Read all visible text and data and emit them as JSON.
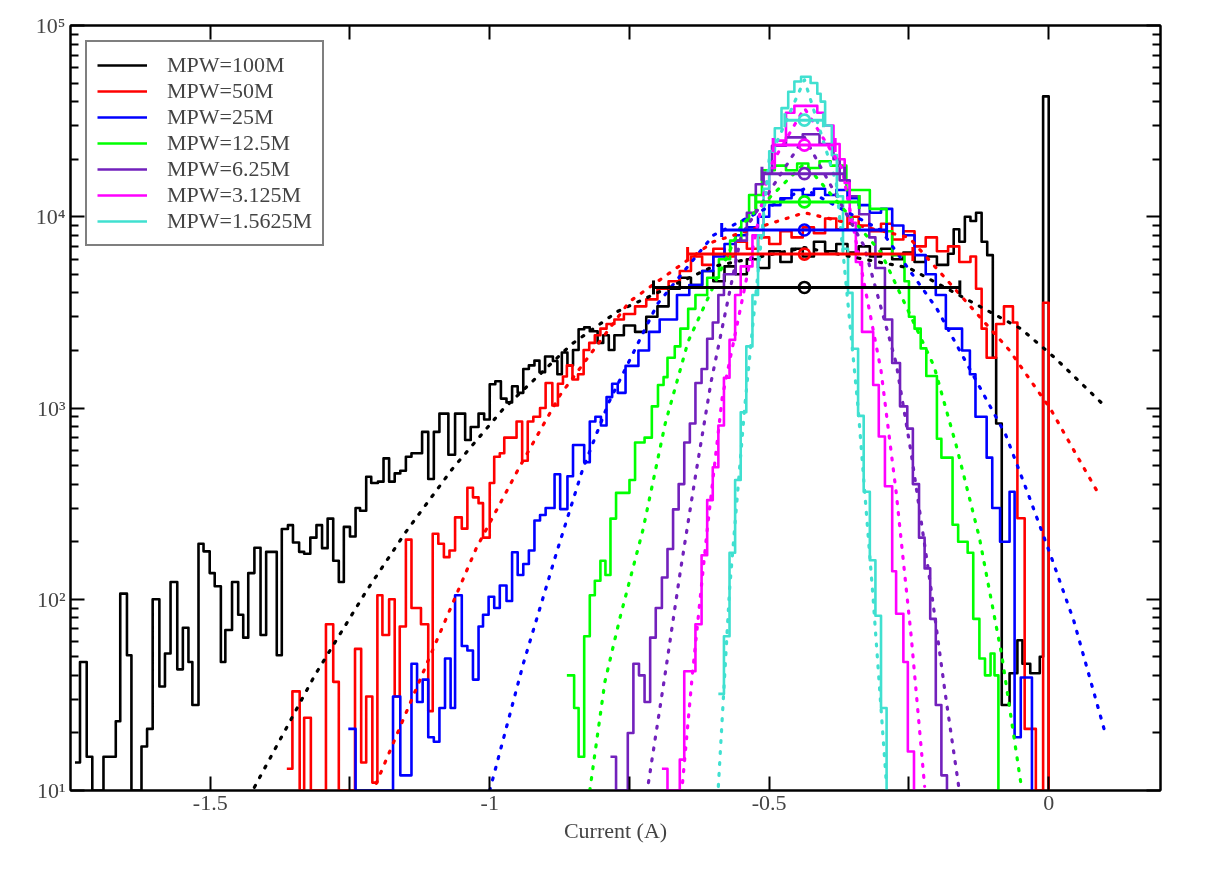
{
  "chart_data": {
    "type": "step",
    "xlabel": "Current (A)",
    "xlim": [
      -1.75,
      0.2
    ],
    "ylim": [
      10,
      100000
    ],
    "log": true,
    "grid": false,
    "legend": "top left",
    "xticks": [
      -1.5,
      {
        "value": -1.25,
        "label": null
      },
      -1,
      {
        "value": -0.75,
        "label": null
      },
      -0.5,
      {
        "value": -0.25,
        "label": null
      },
      0
    ],
    "yticks": [
      {
        "value": 10,
        "label": "10¹"
      },
      {
        "value": 100,
        "label": "10²"
      },
      {
        "value": 1000,
        "label": "10³"
      },
      {
        "value": 10000,
        "label": "10⁴"
      },
      {
        "value": 100000,
        "label": "10⁵"
      }
    ],
    "series": [
      {
        "name": "MPW=100M",
        "color": "#000000",
        "x": [
          -1.742,
          -1.733,
          -1.721,
          -1.711,
          -1.691,
          -1.669,
          -1.661,
          -1.649,
          -1.641,
          -1.623,
          -1.613,
          -1.603,
          -1.591,
          -1.581,
          -1.571,
          -1.559,
          -1.549,
          -1.539,
          -1.532,
          -1.521,
          -1.512,
          -1.501,
          -1.492,
          -1.481,
          -1.473,
          -1.461,
          -1.45,
          -1.441,
          -1.432,
          -1.421,
          -1.41,
          -1.4,
          -1.381,
          -1.372,
          -1.361,
          -1.352,
          -1.341,
          -1.332,
          -1.321,
          -1.31,
          -1.3,
          -1.29,
          -1.28,
          -1.27,
          -1.261,
          -1.25,
          -1.24,
          -1.232,
          -1.221,
          -1.212,
          -1.2,
          -1.19,
          -1.18,
          -1.17,
          -1.16,
          -1.15,
          -1.14,
          -1.121,
          -1.11,
          -1.1,
          -1.09,
          -1.074,
          -1.062,
          -1.044,
          -1.034,
          -1.02,
          -1.01,
          -1.0,
          -0.99,
          -0.98,
          -0.97,
          -0.96,
          -0.95,
          -0.94,
          -0.93,
          -0.92,
          -0.911,
          -0.901,
          -0.887,
          -0.879,
          -0.871,
          -0.861,
          -0.851,
          -0.841,
          -0.831,
          -0.821,
          -0.807,
          -0.797,
          -0.787,
          -0.777,
          -0.76,
          -0.74,
          -0.72,
          -0.7,
          -0.68,
          -0.66,
          -0.64,
          -0.62,
          -0.6,
          -0.58,
          -0.56,
          -0.54,
          -0.52,
          -0.5,
          -0.48,
          -0.46,
          -0.44,
          -0.42,
          -0.4,
          -0.38,
          -0.36,
          -0.34,
          -0.32,
          -0.3,
          -0.28,
          -0.26,
          -0.24,
          -0.22,
          -0.2,
          -0.18,
          -0.17,
          -0.16,
          -0.15,
          -0.14,
          -0.13,
          -0.12,
          -0.11,
          -0.1,
          -0.094,
          -0.084,
          -0.07,
          -0.056,
          -0.047,
          -0.033,
          -0.016,
          -0.01,
          0
        ],
        "values": [
          14,
          47,
          15,
          10,
          15,
          23,
          107,
          51,
          10,
          17,
          21,
          100,
          35,
          52,
          123,
          43,
          71,
          47,
          28,
          195,
          178,
          137,
          117,
          47,
          69,
          123,
          83,
          63,
          137,
          186,
          65,
          177,
          51,
          233,
          244,
          198,
          177,
          173,
          210,
          244,
          185,
          264,
          159,
          123,
          239,
          213,
          300,
          290,
          437,
          405,
          412,
          545,
          412,
          455,
          470,
          556,
          580,
          750,
          425,
          750,
          935,
          570,
          935,
          680,
          795,
          935,
          870,
          1330,
          1380,
          1120,
          1070,
          1300,
          1200,
          1600,
          1670,
          1770,
          1540,
          1860,
          1760,
          1500,
          1950,
          1670,
          2010,
          2580,
          2640,
          2520,
          2190,
          2400,
          2010,
          2400,
          2700,
          2500,
          3000,
          3400,
          4200,
          4800,
          4400,
          5200,
          4600,
          5500,
          5000,
          6000,
          5400,
          6600,
          5800,
          6800,
          6200,
          7400,
          6600,
          7200,
          6500,
          7000,
          6200,
          6800,
          6000,
          6500,
          5800,
          6200,
          5600,
          6400,
          8600,
          7400,
          10000,
          9500,
          10500,
          7400,
          6300,
          1830,
          830,
          28,
          41,
          61,
          46,
          41,
          50,
          42600,
          10
        ]
      },
      {
        "name": "MPW=50M",
        "color": "#ff0000",
        "x": [
          -1.363,
          -1.353,
          -1.34,
          -1.332,
          -1.32,
          -1.293,
          -1.28,
          -1.27,
          -1.241,
          -1.23,
          -1.221,
          -1.21,
          -1.201,
          -1.192,
          -1.18,
          -1.17,
          -1.161,
          -1.15,
          -1.14,
          -1.123,
          -1.11,
          -1.102,
          -1.092,
          -1.082,
          -1.072,
          -1.062,
          -1.05,
          -1.04,
          -1.03,
          -1.02,
          -1.012,
          -1.0,
          -0.992,
          -0.982,
          -0.974,
          -0.952,
          -0.942,
          -0.932,
          -0.922,
          -0.91,
          -0.9,
          -0.888,
          -0.878,
          -0.869,
          -0.862,
          -0.852,
          -0.842,
          -0.832,
          -0.822,
          -0.812,
          -0.802,
          -0.791,
          -0.777,
          -0.76,
          -0.74,
          -0.72,
          -0.7,
          -0.68,
          -0.66,
          -0.64,
          -0.62,
          -0.6,
          -0.58,
          -0.56,
          -0.54,
          -0.52,
          -0.5,
          -0.48,
          -0.46,
          -0.44,
          -0.42,
          -0.4,
          -0.38,
          -0.36,
          -0.34,
          -0.32,
          -0.3,
          -0.28,
          -0.26,
          -0.24,
          -0.22,
          -0.2,
          -0.18,
          -0.16,
          -0.14,
          -0.13,
          -0.12,
          -0.111,
          -0.094,
          -0.08,
          -0.064,
          -0.056,
          -0.043,
          -0.023,
          -0.01,
          0
        ],
        "values": [
          13,
          33,
          10,
          24,
          10,
          74,
          37,
          10,
          55,
          14,
          31,
          11,
          105,
          65,
          100,
          31,
          72,
          205,
          90,
          74,
          26,
          220,
          195,
          166,
          180,
          268,
          234,
          383,
          341,
          318,
          210,
          405,
          556,
          580,
          700,
          850,
          530,
          850,
          900,
          1000,
          1350,
          1030,
          1340,
          1460,
          1670,
          1410,
          1500,
          2010,
          2190,
          2400,
          2600,
          2750,
          2900,
          3100,
          3400,
          3700,
          4200,
          4600,
          5200,
          6200,
          5600,
          6800,
          6200,
          7400,
          6800,
          7800,
          7200,
          8400,
          7800,
          8800,
          8200,
          9800,
          8600,
          10000,
          9000,
          8400,
          9200,
          7600,
          8400,
          7000,
          7800,
          6600,
          7000,
          5800,
          6200,
          4200,
          2600,
          1830,
          2750,
          3400,
          2800,
          265,
          21,
          10,
          3550,
          10
        ]
      },
      {
        "name": "MPW=25M",
        "color": "#0000ff",
        "x": [
          -1.253,
          -1.24,
          -1.173,
          -1.16,
          -1.14,
          -1.13,
          -1.12,
          -1.11,
          -1.1,
          -1.09,
          -1.08,
          -1.07,
          -1.062,
          -1.05,
          -1.04,
          -1.03,
          -1.02,
          -1.012,
          -1.002,
          -0.992,
          -0.982,
          -0.97,
          -0.96,
          -0.95,
          -0.94,
          -0.93,
          -0.92,
          -0.91,
          -0.9,
          -0.884,
          -0.874,
          -0.861,
          -0.851,
          -0.831,
          -0.821,
          -0.811,
          -0.801,
          -0.791,
          -0.781,
          -0.771,
          -0.757,
          -0.734,
          -0.715,
          -0.696,
          -0.665,
          -0.643,
          -0.62,
          -0.6,
          -0.58,
          -0.56,
          -0.54,
          -0.52,
          -0.5,
          -0.48,
          -0.46,
          -0.44,
          -0.42,
          -0.4,
          -0.38,
          -0.36,
          -0.34,
          -0.32,
          -0.3,
          -0.28,
          -0.26,
          -0.24,
          -0.22,
          -0.202,
          -0.184,
          -0.155,
          -0.141,
          -0.131,
          -0.111,
          -0.101,
          -0.087,
          -0.07,
          -0.061,
          -0.05,
          -0.03
        ],
        "values": [
          21,
          10,
          31,
          12,
          46,
          29,
          38,
          19,
          18,
          27,
          49,
          27,
          105,
          57,
          54,
          38,
          72,
          83,
          103,
          90,
          118,
          98,
          176,
          134,
          153,
          180,
          258,
          276,
          300,
          450,
          296,
          440,
          640,
          520,
          850,
          900,
          810,
          1140,
          1340,
          1200,
          1660,
          2000,
          2500,
          2900,
          3900,
          4400,
          5200,
          6200,
          7200,
          8000,
          8800,
          10000,
          11500,
          12500,
          13800,
          13000,
          14000,
          13000,
          13800,
          12500,
          11500,
          10500,
          11000,
          9000,
          8000,
          6300,
          5000,
          3900,
          2600,
          2000,
          1500,
          900,
          550,
          300,
          200,
          365,
          19,
          39,
          10
        ]
      },
      {
        "name": "MPW=12.5M",
        "color": "#00ff00",
        "x": [
          -0.862,
          -0.849,
          -0.841,
          -0.831,
          -0.821,
          -0.812,
          -0.802,
          -0.793,
          -0.784,
          -0.774,
          -0.75,
          -0.74,
          -0.723,
          -0.71,
          -0.699,
          -0.689,
          -0.682,
          -0.669,
          -0.659,
          -0.645,
          -0.632,
          -0.611,
          -0.59,
          -0.57,
          -0.55,
          -0.536,
          -0.513,
          -0.49,
          -0.47,
          -0.45,
          -0.43,
          -0.41,
          -0.39,
          -0.362,
          -0.32,
          -0.29,
          -0.28,
          -0.258,
          -0.25,
          -0.24,
          -0.229,
          -0.219,
          -0.2,
          -0.192,
          -0.172,
          -0.162,
          -0.145,
          -0.135,
          -0.124,
          -0.114,
          -0.104,
          -0.097,
          -0.09
        ],
        "values": [
          40,
          27,
          15,
          64,
          105,
          125,
          159,
          134,
          264,
          360,
          420,
          660,
          700,
          1020,
          1320,
          1450,
          1830,
          2100,
          2600,
          3300,
          3900,
          4800,
          6000,
          7500,
          9500,
          13000,
          17500,
          18500,
          17500,
          19000,
          18000,
          19500,
          18500,
          13800,
          11000,
          8400,
          6300,
          4600,
          3000,
          2600,
          2050,
          1470,
          690,
          550,
          245,
          200,
          175,
          79,
          49,
          40,
          52,
          40,
          10
        ]
      },
      {
        "name": "MPW=6.25M",
        "color": "#7221bc",
        "x": [
          -0.784,
          -0.774,
          -0.753,
          -0.743,
          -0.733,
          -0.723,
          -0.713,
          -0.703,
          -0.692,
          -0.682,
          -0.672,
          -0.662,
          -0.652,
          -0.642,
          -0.632,
          -0.621,
          -0.611,
          -0.601,
          -0.591,
          -0.581,
          -0.56,
          -0.54,
          -0.524,
          -0.51,
          -0.495,
          -0.47,
          -0.44,
          -0.41,
          -0.385,
          -0.374,
          -0.356,
          -0.339,
          -0.321,
          -0.31,
          -0.293,
          -0.28,
          -0.266,
          -0.253,
          -0.243,
          -0.232,
          -0.222,
          -0.212,
          -0.202,
          -0.192,
          -0.182
        ],
        "values": [
          15,
          10,
          20,
          46,
          40,
          29,
          63,
          90,
          130,
          183,
          295,
          400,
          660,
          830,
          1350,
          1600,
          2300,
          2800,
          3900,
          5000,
          7500,
          10500,
          14800,
          17000,
          23500,
          26000,
          27000,
          24000,
          20000,
          15500,
          12800,
          10300,
          7800,
          5400,
          2900,
          1720,
          1020,
          780,
          400,
          210,
          145,
          79,
          28,
          12,
          10
        ]
      },
      {
        "name": "MPW=3.125M",
        "color": "#ff00ff",
        "x": [
          -0.692,
          -0.682,
          -0.66,
          -0.652,
          -0.632,
          -0.621,
          -0.611,
          -0.601,
          -0.591,
          -0.581,
          -0.571,
          -0.561,
          -0.551,
          -0.53,
          -0.51,
          -0.5,
          -0.49,
          -0.47,
          -0.455,
          -0.414,
          -0.403,
          -0.385,
          -0.374,
          -0.365,
          -0.356,
          -0.345,
          -0.334,
          -0.314,
          -0.304,
          -0.293,
          -0.28,
          -0.273,
          -0.26,
          -0.252,
          -0.241
        ],
        "values": [
          13,
          10,
          14.5,
          42,
          74,
          170,
          330,
          490,
          810,
          1440,
          2270,
          3900,
          5500,
          8000,
          12000,
          18000,
          25000,
          35000,
          38000,
          35000,
          30000,
          24000,
          20000,
          15000,
          9300,
          5800,
          2500,
          1320,
          710,
          390,
          140,
          84,
          47,
          16,
          10
        ]
      },
      {
        "name": "MPW=1.5625M",
        "color": "#40e0d0",
        "x": [
          -0.591,
          -0.581,
          -0.571,
          -0.561,
          -0.551,
          -0.541,
          -0.53,
          -0.52,
          -0.51,
          -0.5,
          -0.49,
          -0.478,
          -0.466,
          -0.455,
          -0.443,
          -0.426,
          -0.414,
          -0.408,
          -0.4,
          -0.388,
          -0.379,
          -0.368,
          -0.359,
          -0.351,
          -0.341,
          -0.331,
          -0.32,
          -0.31,
          -0.3,
          -0.29
        ],
        "values": [
          32,
          64,
          175,
          420,
          950,
          2100,
          3900,
          8000,
          14000,
          22000,
          29000,
          37000,
          45000,
          51000,
          54000,
          50000,
          44000,
          40000,
          30000,
          21000,
          12800,
          6800,
          4000,
          2040,
          910,
          365,
          160,
          82,
          27,
          10
        ]
      },
      {
        "type": "line",
        "line_style": "dotted",
        "color": "#000000",
        "x": [
          -1.421,
          -1.313,
          -1.221,
          -1.15,
          -1.067,
          -0.977,
          -0.854,
          -0.771,
          -0.6,
          -0.437,
          -0.25,
          -0.05,
          0.011,
          0.095
        ],
        "values": [
          10.4,
          40,
          110,
          225,
          480,
          980,
          2150,
          3200,
          5500,
          6900,
          5400,
          2600,
          1830,
          1060
        ]
      },
      {
        "type": "line",
        "line_style": "dotted",
        "color": "#ff0000",
        "x": [
          -1.203,
          -1.114,
          -1.024,
          -0.947,
          -0.874,
          -0.75,
          -0.6,
          -0.437,
          -0.25,
          -0.07,
          0.004,
          0.041,
          0.089
        ],
        "values": [
          10.9,
          45,
          185,
          490,
          1170,
          3600,
          7400,
          10500,
          7800,
          2000,
          980,
          630,
          357
        ]
      },
      {
        "type": "line",
        "line_style": "dotted",
        "color": "#0000ff",
        "x": [
          -1.0,
          -0.94,
          -0.88,
          -0.834,
          -0.787,
          -0.7,
          -0.6,
          -0.437,
          -0.3,
          -0.2,
          -0.077,
          -0.036,
          0.004,
          0.045,
          0.099
        ],
        "values": [
          10,
          46,
          177,
          475,
          1070,
          3500,
          8000,
          14000,
          8500,
          3300,
          725,
          350,
          168,
          77,
          21
        ]
      },
      {
        "type": "line",
        "line_style": "dotted",
        "color": "#00ff00",
        "x": [
          -0.821,
          -0.794,
          -0.767,
          -0.726,
          -0.686,
          -0.645,
          -0.55,
          -0.437,
          -0.3,
          -0.205,
          -0.165,
          -0.124,
          -0.084,
          -0.05
        ],
        "values": [
          10,
          37,
          80,
          230,
          830,
          2230,
          9000,
          19000,
          6500,
          1650,
          630,
          210,
          51,
          11
        ]
      },
      {
        "type": "line",
        "line_style": "dotted",
        "color": "#7221bc",
        "x": [
          -0.716,
          -0.686,
          -0.659,
          -0.632,
          -0.604,
          -0.55,
          -0.437,
          -0.33,
          -0.273,
          -0.246,
          -0.212,
          -0.185,
          -0.161
        ],
        "values": [
          11,
          41,
          140,
          440,
          1370,
          8000,
          26000,
          7000,
          1720,
          580,
          122,
          32,
          10.5
        ]
      },
      {
        "type": "line",
        "line_style": "dotted",
        "color": "#ff00ff",
        "x": [
          -0.655,
          -0.638,
          -0.611,
          -0.584,
          -0.5,
          -0.437,
          -0.37,
          -0.3,
          -0.273,
          -0.246,
          -0.222
        ],
        "values": [
          11,
          39,
          230,
          1140,
          18000,
          37000,
          18000,
          1570,
          365,
          64,
          10.5
        ]
      },
      {
        "type": "line",
        "line_style": "dotted",
        "color": "#40e0d0",
        "x": [
          -0.591,
          -0.571,
          -0.544,
          -0.5,
          -0.437,
          -0.38,
          -0.341,
          -0.314,
          -0.29
        ],
        "values": [
          10.5,
          112,
          1000,
          20000,
          52000,
          15000,
          1000,
          100,
          10.5
        ]
      },
      {
        "type": "scatter",
        "marker": "circle",
        "x": [
          -0.437,
          -0.437,
          -0.437,
          -0.437,
          -0.437,
          -0.437,
          -0.437
        ],
        "values": [
          4270,
          6380,
          8520,
          11960,
          16800,
          23700,
          32000
        ],
        "colors": [
          "#000000",
          "#ff0000",
          "#0000ff",
          "#00ff00",
          "#7221bc",
          "#ff00ff",
          "#40e0d0"
        ],
        "xerrors": [
          [
            -0.707,
            -0.159
          ],
          [
            -0.646,
            -0.243
          ],
          [
            -0.585,
            -0.29
          ],
          [
            -0.524,
            -0.339
          ],
          [
            -0.513,
            -0.365
          ],
          [
            -0.493,
            -0.382
          ],
          [
            -0.472,
            -0.403
          ]
        ]
      }
    ]
  }
}
